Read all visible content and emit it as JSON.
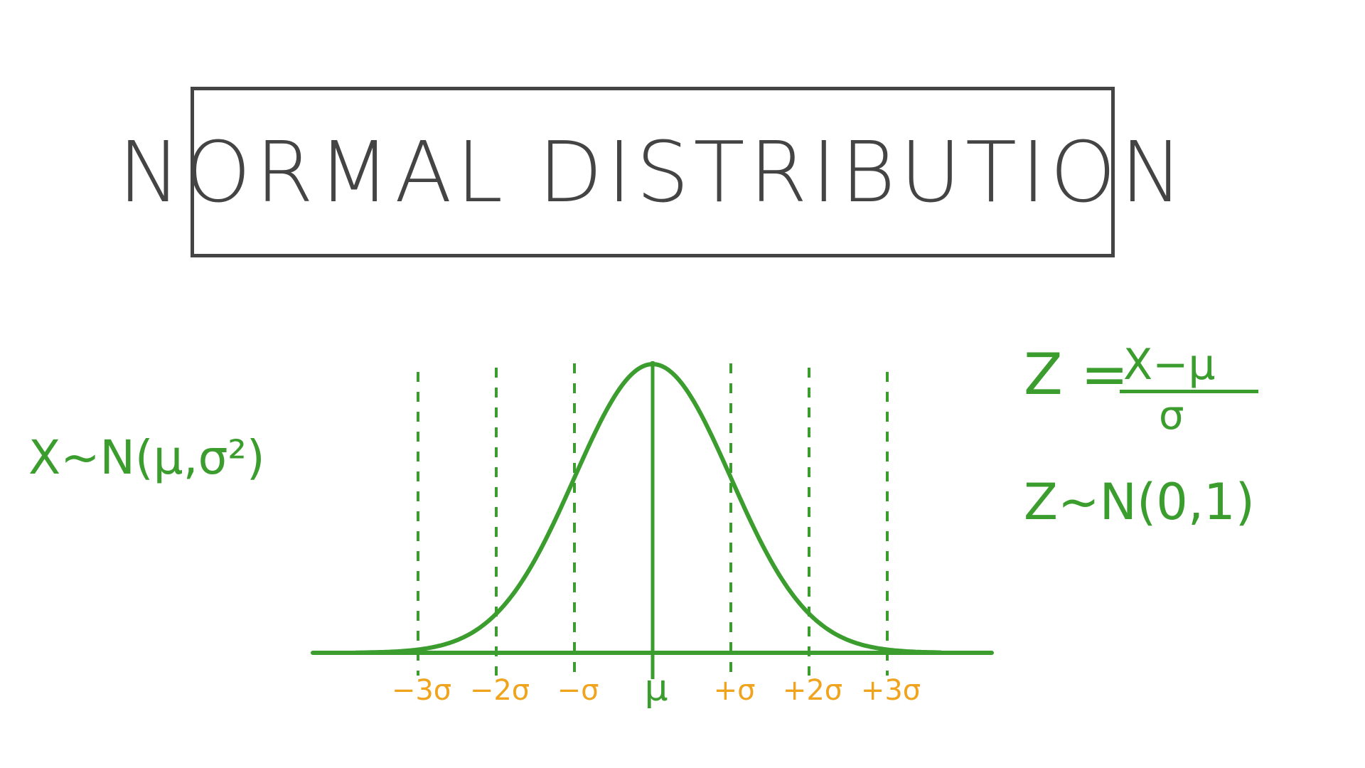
{
  "title": "NORMAL DISTRIBUTION",
  "distribution": "X~N(μ,σ²)",
  "zscore": {
    "lhs": "Z =",
    "numerator": "X−μ",
    "denominator": "σ"
  },
  "standard": "Z~N(0,1)",
  "ticks": [
    "−3σ",
    "−2σ",
    "−σ",
    "μ",
    "+σ",
    "+2σ",
    "+3σ"
  ],
  "colors": {
    "curve": "#3a9d2e",
    "ticks": "#f0a31c",
    "guides": "#3a9d2e",
    "frame": "#444444"
  }
}
